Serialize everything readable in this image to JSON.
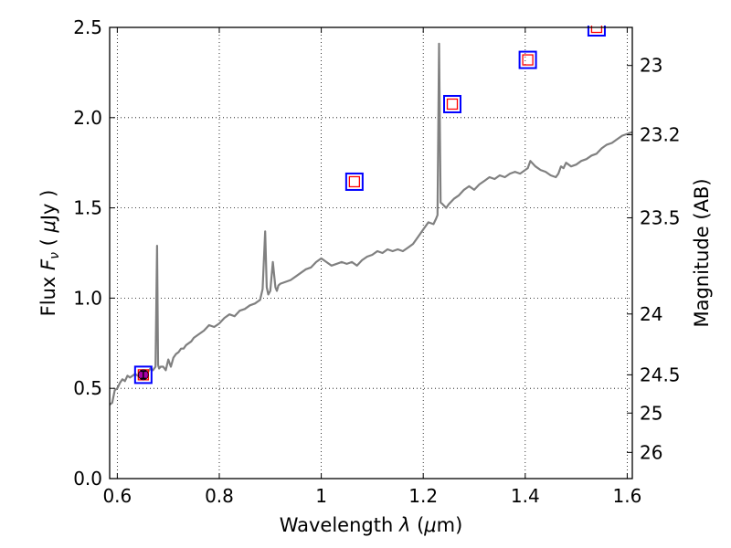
{
  "chart_data": {
    "type": "line",
    "xlabel_text": "Wavelength",
    "xlabel_symbol": "λ",
    "xlabel_unit_open": " (",
    "xlabel_unit_mu": "μ",
    "xlabel_unit_rest": "m)",
    "ylabel_text": "Flux",
    "ylabel_symbol": "F",
    "ylabel_symbol_sub": "ν",
    "ylabel_unit_open": "( ",
    "ylabel_unit_mu": "μ",
    "ylabel_unit_rest": "Jy )",
    "y2label": "Magnitude (AB)",
    "xlim": [
      0.585,
      1.61
    ],
    "ylim": [
      0.0,
      2.5
    ],
    "grid": true,
    "grid_style": "dotted",
    "x_ticks": [
      0.6,
      0.8,
      1.0,
      1.2,
      1.4,
      1.6
    ],
    "x_tick_labels": [
      "0.6",
      "0.8",
      "1",
      "1.2",
      "1.4",
      "1.6"
    ],
    "y_ticks": [
      0.0,
      0.5,
      1.0,
      1.5,
      2.0,
      2.5
    ],
    "y_tick_labels": [
      "0.0",
      "0.5",
      "1.0",
      "1.5",
      "2.0",
      "2.5"
    ],
    "y2_ticks": [
      {
        "label": "23",
        "flux": 2.289
      },
      {
        "label": "23.2",
        "flux": 1.905
      },
      {
        "label": "23.5",
        "flux": 1.445
      },
      {
        "label": "24",
        "flux": 0.912
      },
      {
        "label": "24.5",
        "flux": 0.575
      },
      {
        "label": "25",
        "flux": 0.363
      },
      {
        "label": "26",
        "flux": 0.145
      }
    ],
    "series": [
      {
        "type": "line",
        "color": "#808080",
        "x": [
          0.585,
          0.59,
          0.595,
          0.6,
          0.605,
          0.61,
          0.615,
          0.62,
          0.625,
          0.63,
          0.635,
          0.64,
          0.645,
          0.65,
          0.655,
          0.66,
          0.665,
          0.67,
          0.675,
          0.678,
          0.68,
          0.682,
          0.685,
          0.69,
          0.695,
          0.7,
          0.705,
          0.71,
          0.715,
          0.72,
          0.725,
          0.73,
          0.735,
          0.74,
          0.745,
          0.75,
          0.76,
          0.77,
          0.78,
          0.79,
          0.8,
          0.81,
          0.82,
          0.83,
          0.84,
          0.85,
          0.86,
          0.87,
          0.88,
          0.885,
          0.89,
          0.893,
          0.896,
          0.9,
          0.905,
          0.91,
          0.913,
          0.916,
          0.92,
          0.93,
          0.94,
          0.95,
          0.96,
          0.97,
          0.98,
          0.99,
          1.0,
          1.01,
          1.02,
          1.03,
          1.04,
          1.05,
          1.06,
          1.07,
          1.08,
          1.09,
          1.1,
          1.11,
          1.12,
          1.13,
          1.14,
          1.15,
          1.16,
          1.17,
          1.18,
          1.19,
          1.2,
          1.21,
          1.22,
          1.225,
          1.228,
          1.231,
          1.234,
          1.238,
          1.245,
          1.25,
          1.26,
          1.27,
          1.28,
          1.29,
          1.3,
          1.31,
          1.32,
          1.33,
          1.34,
          1.35,
          1.36,
          1.37,
          1.38,
          1.39,
          1.4,
          1.405,
          1.41,
          1.42,
          1.43,
          1.44,
          1.45,
          1.46,
          1.465,
          1.47,
          1.475,
          1.48,
          1.49,
          1.5,
          1.51,
          1.52,
          1.53,
          1.54,
          1.55,
          1.56,
          1.57,
          1.58,
          1.59,
          1.6,
          1.61
        ],
        "y": [
          0.41,
          0.42,
          0.49,
          0.5,
          0.53,
          0.55,
          0.54,
          0.57,
          0.56,
          0.57,
          0.58,
          0.57,
          0.59,
          0.58,
          0.6,
          0.59,
          0.61,
          0.6,
          0.62,
          1.29,
          0.63,
          0.61,
          0.62,
          0.62,
          0.6,
          0.66,
          0.62,
          0.67,
          0.69,
          0.7,
          0.72,
          0.72,
          0.74,
          0.75,
          0.76,
          0.78,
          0.8,
          0.82,
          0.85,
          0.84,
          0.86,
          0.89,
          0.91,
          0.9,
          0.93,
          0.94,
          0.96,
          0.97,
          0.99,
          1.05,
          1.37,
          1.06,
          1.02,
          1.04,
          1.2,
          1.06,
          1.04,
          1.07,
          1.08,
          1.09,
          1.1,
          1.12,
          1.14,
          1.16,
          1.17,
          1.2,
          1.22,
          1.2,
          1.18,
          1.19,
          1.2,
          1.19,
          1.2,
          1.18,
          1.21,
          1.23,
          1.24,
          1.26,
          1.25,
          1.27,
          1.26,
          1.27,
          1.26,
          1.28,
          1.3,
          1.34,
          1.38,
          1.42,
          1.41,
          1.44,
          1.46,
          2.41,
          1.53,
          1.52,
          1.5,
          1.52,
          1.55,
          1.57,
          1.6,
          1.62,
          1.6,
          1.63,
          1.65,
          1.67,
          1.66,
          1.68,
          1.67,
          1.69,
          1.7,
          1.69,
          1.71,
          1.72,
          1.76,
          1.73,
          1.71,
          1.7,
          1.68,
          1.67,
          1.69,
          1.73,
          1.72,
          1.75,
          1.73,
          1.74,
          1.76,
          1.77,
          1.79,
          1.8,
          1.83,
          1.85,
          1.86,
          1.88,
          1.9,
          1.91,
          1.92
        ]
      },
      {
        "type": "squares",
        "marker_outer": "#0000ff",
        "marker_inner": "#ff0000",
        "x": [
          0.651,
          1.065,
          1.257,
          1.405,
          1.54
        ],
        "y": [
          0.575,
          1.645,
          2.075,
          2.32,
          2.5
        ]
      },
      {
        "type": "point",
        "color": "#aa00aa",
        "x": [
          0.651
        ],
        "y": [
          0.575
        ],
        "yerr": [
          0.02
        ]
      }
    ]
  }
}
